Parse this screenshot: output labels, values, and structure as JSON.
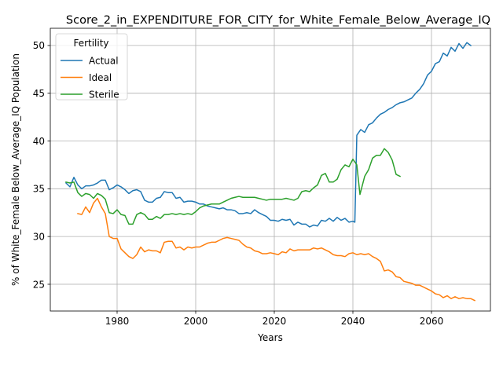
{
  "chart_data": {
    "type": "line",
    "title": "Score_2_in_EXPENDITURE_FOR_CITY_for_White_Female_Below_Average_IQ",
    "xlabel": "Years",
    "ylabel": "% of White_Female Below_Average_IQ Population",
    "xlim": [
      1963,
      2075
    ],
    "ylim": [
      22.2,
      51.8
    ],
    "xticks": [
      1980,
      2000,
      2020,
      2040,
      2060
    ],
    "yticks": [
      25,
      30,
      35,
      40,
      45,
      50
    ],
    "grid": true,
    "legend": {
      "title": "Fertility",
      "placement": "top-left"
    },
    "series": [
      {
        "name": "Actual",
        "color": "#1f77b4",
        "points": [
          [
            1967,
            35.6
          ],
          [
            1968,
            35.2
          ],
          [
            1969,
            36.2
          ],
          [
            1970,
            35.4
          ],
          [
            1971,
            35.0
          ],
          [
            1972,
            35.3
          ],
          [
            1973,
            35.3
          ],
          [
            1974,
            35.4
          ],
          [
            1975,
            35.6
          ],
          [
            1976,
            35.9
          ],
          [
            1977,
            35.9
          ],
          [
            1978,
            34.9
          ],
          [
            1979,
            35.1
          ],
          [
            1980,
            35.4
          ],
          [
            1981,
            35.2
          ],
          [
            1982,
            34.9
          ],
          [
            1983,
            34.5
          ],
          [
            1984,
            34.8
          ],
          [
            1985,
            34.9
          ],
          [
            1986,
            34.7
          ],
          [
            1987,
            33.8
          ],
          [
            1988,
            33.6
          ],
          [
            1989,
            33.6
          ],
          [
            1990,
            34.0
          ],
          [
            1991,
            34.1
          ],
          [
            1992,
            34.7
          ],
          [
            1993,
            34.6
          ],
          [
            1994,
            34.6
          ],
          [
            1995,
            34.0
          ],
          [
            1996,
            34.1
          ],
          [
            1997,
            33.6
          ],
          [
            1998,
            33.7
          ],
          [
            1999,
            33.7
          ],
          [
            2000,
            33.6
          ],
          [
            2001,
            33.4
          ],
          [
            2002,
            33.4
          ],
          [
            2003,
            33.2
          ],
          [
            2004,
            33.1
          ],
          [
            2005,
            33.0
          ],
          [
            2006,
            32.9
          ],
          [
            2007,
            33.0
          ],
          [
            2008,
            32.8
          ],
          [
            2009,
            32.8
          ],
          [
            2010,
            32.7
          ],
          [
            2011,
            32.4
          ],
          [
            2012,
            32.4
          ],
          [
            2013,
            32.5
          ],
          [
            2014,
            32.4
          ],
          [
            2015,
            32.8
          ],
          [
            2016,
            32.5
          ],
          [
            2017,
            32.3
          ],
          [
            2018,
            32.1
          ],
          [
            2019,
            31.7
          ],
          [
            2020,
            31.7
          ],
          [
            2021,
            31.6
          ],
          [
            2022,
            31.8
          ],
          [
            2023,
            31.7
          ],
          [
            2024,
            31.8
          ],
          [
            2025,
            31.2
          ],
          [
            2026,
            31.5
          ],
          [
            2027,
            31.3
          ],
          [
            2028,
            31.3
          ],
          [
            2029,
            31.0
          ],
          [
            2030,
            31.2
          ],
          [
            2031,
            31.1
          ],
          [
            2032,
            31.7
          ],
          [
            2033,
            31.6
          ],
          [
            2034,
            31.9
          ],
          [
            2035,
            31.6
          ],
          [
            2036,
            32.0
          ],
          [
            2037,
            31.7
          ],
          [
            2038,
            31.9
          ],
          [
            2039,
            31.5
          ],
          [
            2040,
            31.6
          ],
          [
            2040.5,
            31.5
          ],
          [
            2041,
            40.6
          ],
          [
            2042,
            41.2
          ],
          [
            2043,
            40.9
          ],
          [
            2044,
            41.7
          ],
          [
            2045,
            41.9
          ],
          [
            2046,
            42.4
          ],
          [
            2047,
            42.8
          ],
          [
            2048,
            43.0
          ],
          [
            2049,
            43.3
          ],
          [
            2050,
            43.5
          ],
          [
            2051,
            43.8
          ],
          [
            2052,
            44.0
          ],
          [
            2053,
            44.1
          ],
          [
            2054,
            44.3
          ],
          [
            2055,
            44.5
          ],
          [
            2056,
            45.0
          ],
          [
            2057,
            45.4
          ],
          [
            2058,
            46.0
          ],
          [
            2059,
            46.9
          ],
          [
            2060,
            47.3
          ],
          [
            2061,
            48.1
          ],
          [
            2062,
            48.3
          ],
          [
            2063,
            49.2
          ],
          [
            2064,
            48.9
          ],
          [
            2065,
            49.8
          ],
          [
            2066,
            49.4
          ],
          [
            2067,
            50.2
          ],
          [
            2068,
            49.7
          ],
          [
            2069,
            50.3
          ],
          [
            2070,
            50.0
          ]
        ]
      },
      {
        "name": "Ideal",
        "color": "#ff7f0e",
        "points": [
          [
            1970,
            32.4
          ],
          [
            1971,
            32.3
          ],
          [
            1972,
            33.1
          ],
          [
            1973,
            32.5
          ],
          [
            1974,
            33.5
          ],
          [
            1975,
            34.0
          ],
          [
            1976,
            33.1
          ],
          [
            1977,
            32.4
          ],
          [
            1978,
            30.0
          ],
          [
            1979,
            29.8
          ],
          [
            1980,
            29.8
          ],
          [
            1981,
            28.7
          ],
          [
            1982,
            28.3
          ],
          [
            1983,
            27.9
          ],
          [
            1984,
            27.7
          ],
          [
            1985,
            28.1
          ],
          [
            1986,
            28.9
          ],
          [
            1987,
            28.4
          ],
          [
            1988,
            28.6
          ],
          [
            1989,
            28.5
          ],
          [
            1990,
            28.5
          ],
          [
            1991,
            28.3
          ],
          [
            1992,
            29.4
          ],
          [
            1993,
            29.5
          ],
          [
            1994,
            29.5
          ],
          [
            1995,
            28.8
          ],
          [
            1996,
            28.9
          ],
          [
            1997,
            28.6
          ],
          [
            1998,
            28.9
          ],
          [
            1999,
            28.8
          ],
          [
            2000,
            28.9
          ],
          [
            2001,
            28.9
          ],
          [
            2002,
            29.1
          ],
          [
            2003,
            29.3
          ],
          [
            2004,
            29.4
          ],
          [
            2005,
            29.4
          ],
          [
            2006,
            29.6
          ],
          [
            2007,
            29.8
          ],
          [
            2008,
            29.9
          ],
          [
            2009,
            29.8
          ],
          [
            2010,
            29.7
          ],
          [
            2011,
            29.6
          ],
          [
            2012,
            29.2
          ],
          [
            2013,
            28.9
          ],
          [
            2014,
            28.8
          ],
          [
            2015,
            28.5
          ],
          [
            2016,
            28.4
          ],
          [
            2017,
            28.2
          ],
          [
            2018,
            28.2
          ],
          [
            2019,
            28.3
          ],
          [
            2020,
            28.2
          ],
          [
            2021,
            28.1
          ],
          [
            2022,
            28.4
          ],
          [
            2023,
            28.3
          ],
          [
            2024,
            28.7
          ],
          [
            2025,
            28.5
          ],
          [
            2026,
            28.6
          ],
          [
            2027,
            28.6
          ],
          [
            2028,
            28.6
          ],
          [
            2029,
            28.6
          ],
          [
            2030,
            28.8
          ],
          [
            2031,
            28.7
          ],
          [
            2032,
            28.8
          ],
          [
            2033,
            28.6
          ],
          [
            2034,
            28.4
          ],
          [
            2035,
            28.1
          ],
          [
            2036,
            28.0
          ],
          [
            2037,
            28.0
          ],
          [
            2038,
            27.9
          ],
          [
            2039,
            28.2
          ],
          [
            2040,
            28.3
          ],
          [
            2041,
            28.1
          ],
          [
            2042,
            28.2
          ],
          [
            2043,
            28.1
          ],
          [
            2044,
            28.2
          ],
          [
            2045,
            27.9
          ],
          [
            2046,
            27.7
          ],
          [
            2047,
            27.4
          ],
          [
            2048,
            26.4
          ],
          [
            2049,
            26.5
          ],
          [
            2050,
            26.3
          ],
          [
            2051,
            25.8
          ],
          [
            2052,
            25.7
          ],
          [
            2053,
            25.3
          ],
          [
            2054,
            25.2
          ],
          [
            2055,
            25.1
          ],
          [
            2056,
            24.9
          ],
          [
            2057,
            24.9
          ],
          [
            2058,
            24.7
          ],
          [
            2059,
            24.5
          ],
          [
            2060,
            24.3
          ],
          [
            2061,
            24.0
          ],
          [
            2062,
            23.9
          ],
          [
            2063,
            23.6
          ],
          [
            2064,
            23.8
          ],
          [
            2065,
            23.5
          ],
          [
            2066,
            23.7
          ],
          [
            2067,
            23.5
          ],
          [
            2068,
            23.6
          ],
          [
            2069,
            23.5
          ],
          [
            2070,
            23.5
          ],
          [
            2071,
            23.3
          ]
        ]
      },
      {
        "name": "Sterile",
        "color": "#2ca02c",
        "points": [
          [
            1967,
            35.7
          ],
          [
            1968,
            35.6
          ],
          [
            1969,
            35.7
          ],
          [
            1970,
            34.6
          ],
          [
            1971,
            34.2
          ],
          [
            1972,
            34.5
          ],
          [
            1973,
            34.4
          ],
          [
            1974,
            34.0
          ],
          [
            1975,
            34.5
          ],
          [
            1976,
            34.3
          ],
          [
            1977,
            33.9
          ],
          [
            1978,
            32.5
          ],
          [
            1979,
            32.4
          ],
          [
            1980,
            32.8
          ],
          [
            1981,
            32.3
          ],
          [
            1982,
            32.2
          ],
          [
            1983,
            31.3
          ],
          [
            1984,
            31.3
          ],
          [
            1985,
            32.3
          ],
          [
            1986,
            32.5
          ],
          [
            1987,
            32.3
          ],
          [
            1988,
            31.8
          ],
          [
            1989,
            31.8
          ],
          [
            1990,
            32.1
          ],
          [
            1991,
            31.9
          ],
          [
            1992,
            32.3
          ],
          [
            1993,
            32.3
          ],
          [
            1994,
            32.4
          ],
          [
            1995,
            32.3
          ],
          [
            1996,
            32.4
          ],
          [
            1997,
            32.3
          ],
          [
            1998,
            32.4
          ],
          [
            1999,
            32.3
          ],
          [
            2000,
            32.6
          ],
          [
            2001,
            33.0
          ],
          [
            2002,
            33.2
          ],
          [
            2003,
            33.3
          ],
          [
            2004,
            33.4
          ],
          [
            2005,
            33.4
          ],
          [
            2006,
            33.4
          ],
          [
            2007,
            33.6
          ],
          [
            2008,
            33.8
          ],
          [
            2009,
            34.0
          ],
          [
            2010,
            34.1
          ],
          [
            2011,
            34.2
          ],
          [
            2012,
            34.1
          ],
          [
            2013,
            34.1
          ],
          [
            2014,
            34.1
          ],
          [
            2015,
            34.1
          ],
          [
            2016,
            34.0
          ],
          [
            2017,
            33.9
          ],
          [
            2018,
            33.8
          ],
          [
            2019,
            33.9
          ],
          [
            2020,
            33.9
          ],
          [
            2021,
            33.9
          ],
          [
            2022,
            33.9
          ],
          [
            2023,
            34.0
          ],
          [
            2024,
            33.9
          ],
          [
            2025,
            33.8
          ],
          [
            2026,
            34.0
          ],
          [
            2027,
            34.7
          ],
          [
            2028,
            34.8
          ],
          [
            2029,
            34.7
          ],
          [
            2030,
            35.1
          ],
          [
            2031,
            35.4
          ],
          [
            2032,
            36.4
          ],
          [
            2033,
            36.6
          ],
          [
            2034,
            35.7
          ],
          [
            2035,
            35.7
          ],
          [
            2036,
            36.0
          ],
          [
            2037,
            37.0
          ],
          [
            2038,
            37.5
          ],
          [
            2039,
            37.3
          ],
          [
            2040,
            38.1
          ],
          [
            2041,
            37.5
          ],
          [
            2041.8,
            34.4
          ],
          [
            2043,
            36.3
          ],
          [
            2044,
            37.0
          ],
          [
            2045,
            38.2
          ],
          [
            2046,
            38.5
          ],
          [
            2047,
            38.5
          ],
          [
            2048,
            39.2
          ],
          [
            2049,
            38.8
          ],
          [
            2050,
            38.0
          ],
          [
            2051,
            36.5
          ],
          [
            2052,
            36.3
          ]
        ]
      }
    ]
  }
}
